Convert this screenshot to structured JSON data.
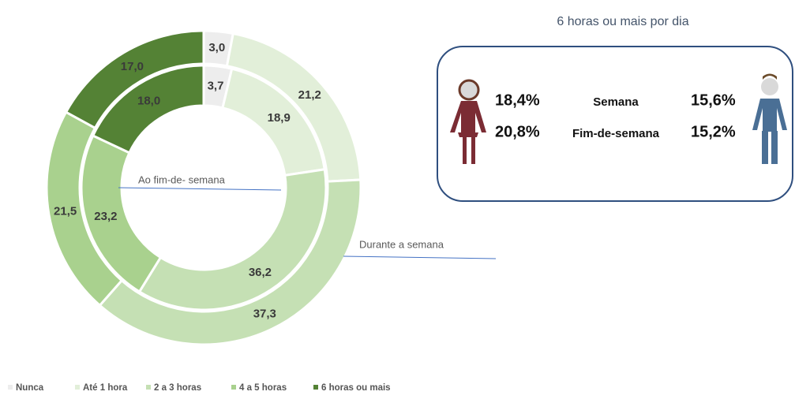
{
  "chart_data": {
    "type": "pie",
    "categories": [
      "Nunca",
      "Até 1 hora",
      "2 a 3 horas",
      "4 a 5 horas",
      "6 horas ou mais"
    ],
    "colors": [
      "#ededed",
      "#e2efd9",
      "#c5e0b4",
      "#a9d18e",
      "#548235"
    ],
    "series": [
      {
        "name": "Durante a semana",
        "values": [
          3.0,
          21.2,
          37.3,
          21.5,
          17.0
        ],
        "value_labels": [
          "3,0",
          "21,2",
          "37,3",
          "21,5",
          "17,0"
        ]
      },
      {
        "name": "Ao fim-de- semana",
        "values": [
          3.7,
          18.9,
          36.2,
          23.2,
          18.0
        ],
        "value_labels": [
          "3,7",
          "18,9",
          "36,2",
          "23,2",
          "18,0"
        ]
      }
    ],
    "legend": "bottom"
  },
  "box": {
    "title": "6 horas ou mais por dia",
    "rows": [
      {
        "female": "18,4%",
        "label": "Semana",
        "male": "15,6%"
      },
      {
        "female": "20,8%",
        "label": "Fim-de-semana",
        "male": "15,2%"
      }
    ]
  }
}
